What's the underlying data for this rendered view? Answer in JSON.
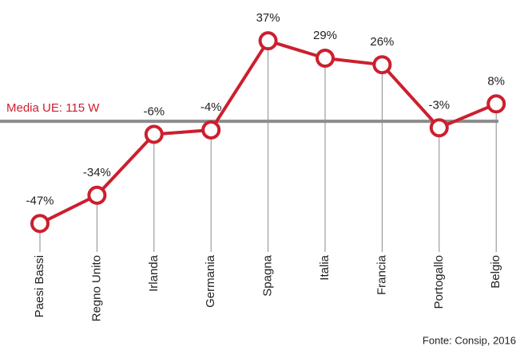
{
  "chart_data": {
    "type": "line",
    "categories": [
      "Paesi Bassi",
      "Regno Unito",
      "Irlanda",
      "Germania",
      "Spagna",
      "Italia",
      "Francia",
      "Portogallo",
      "Belgio"
    ],
    "values": [
      -47,
      -34,
      -6,
      -4,
      37,
      29,
      26,
      -3,
      8
    ],
    "value_labels": [
      "-47%",
      "-34%",
      "-6%",
      "-4%",
      "37%",
      "29%",
      "26%",
      "-3%",
      "8%"
    ],
    "color": "#cc1f2f",
    "ylim": [
      -50,
      40
    ],
    "reference": {
      "value": 0,
      "label": "Media UE: 115 W",
      "color": "#8c8c8c"
    },
    "source": "Fonte: Consip, 2016"
  }
}
